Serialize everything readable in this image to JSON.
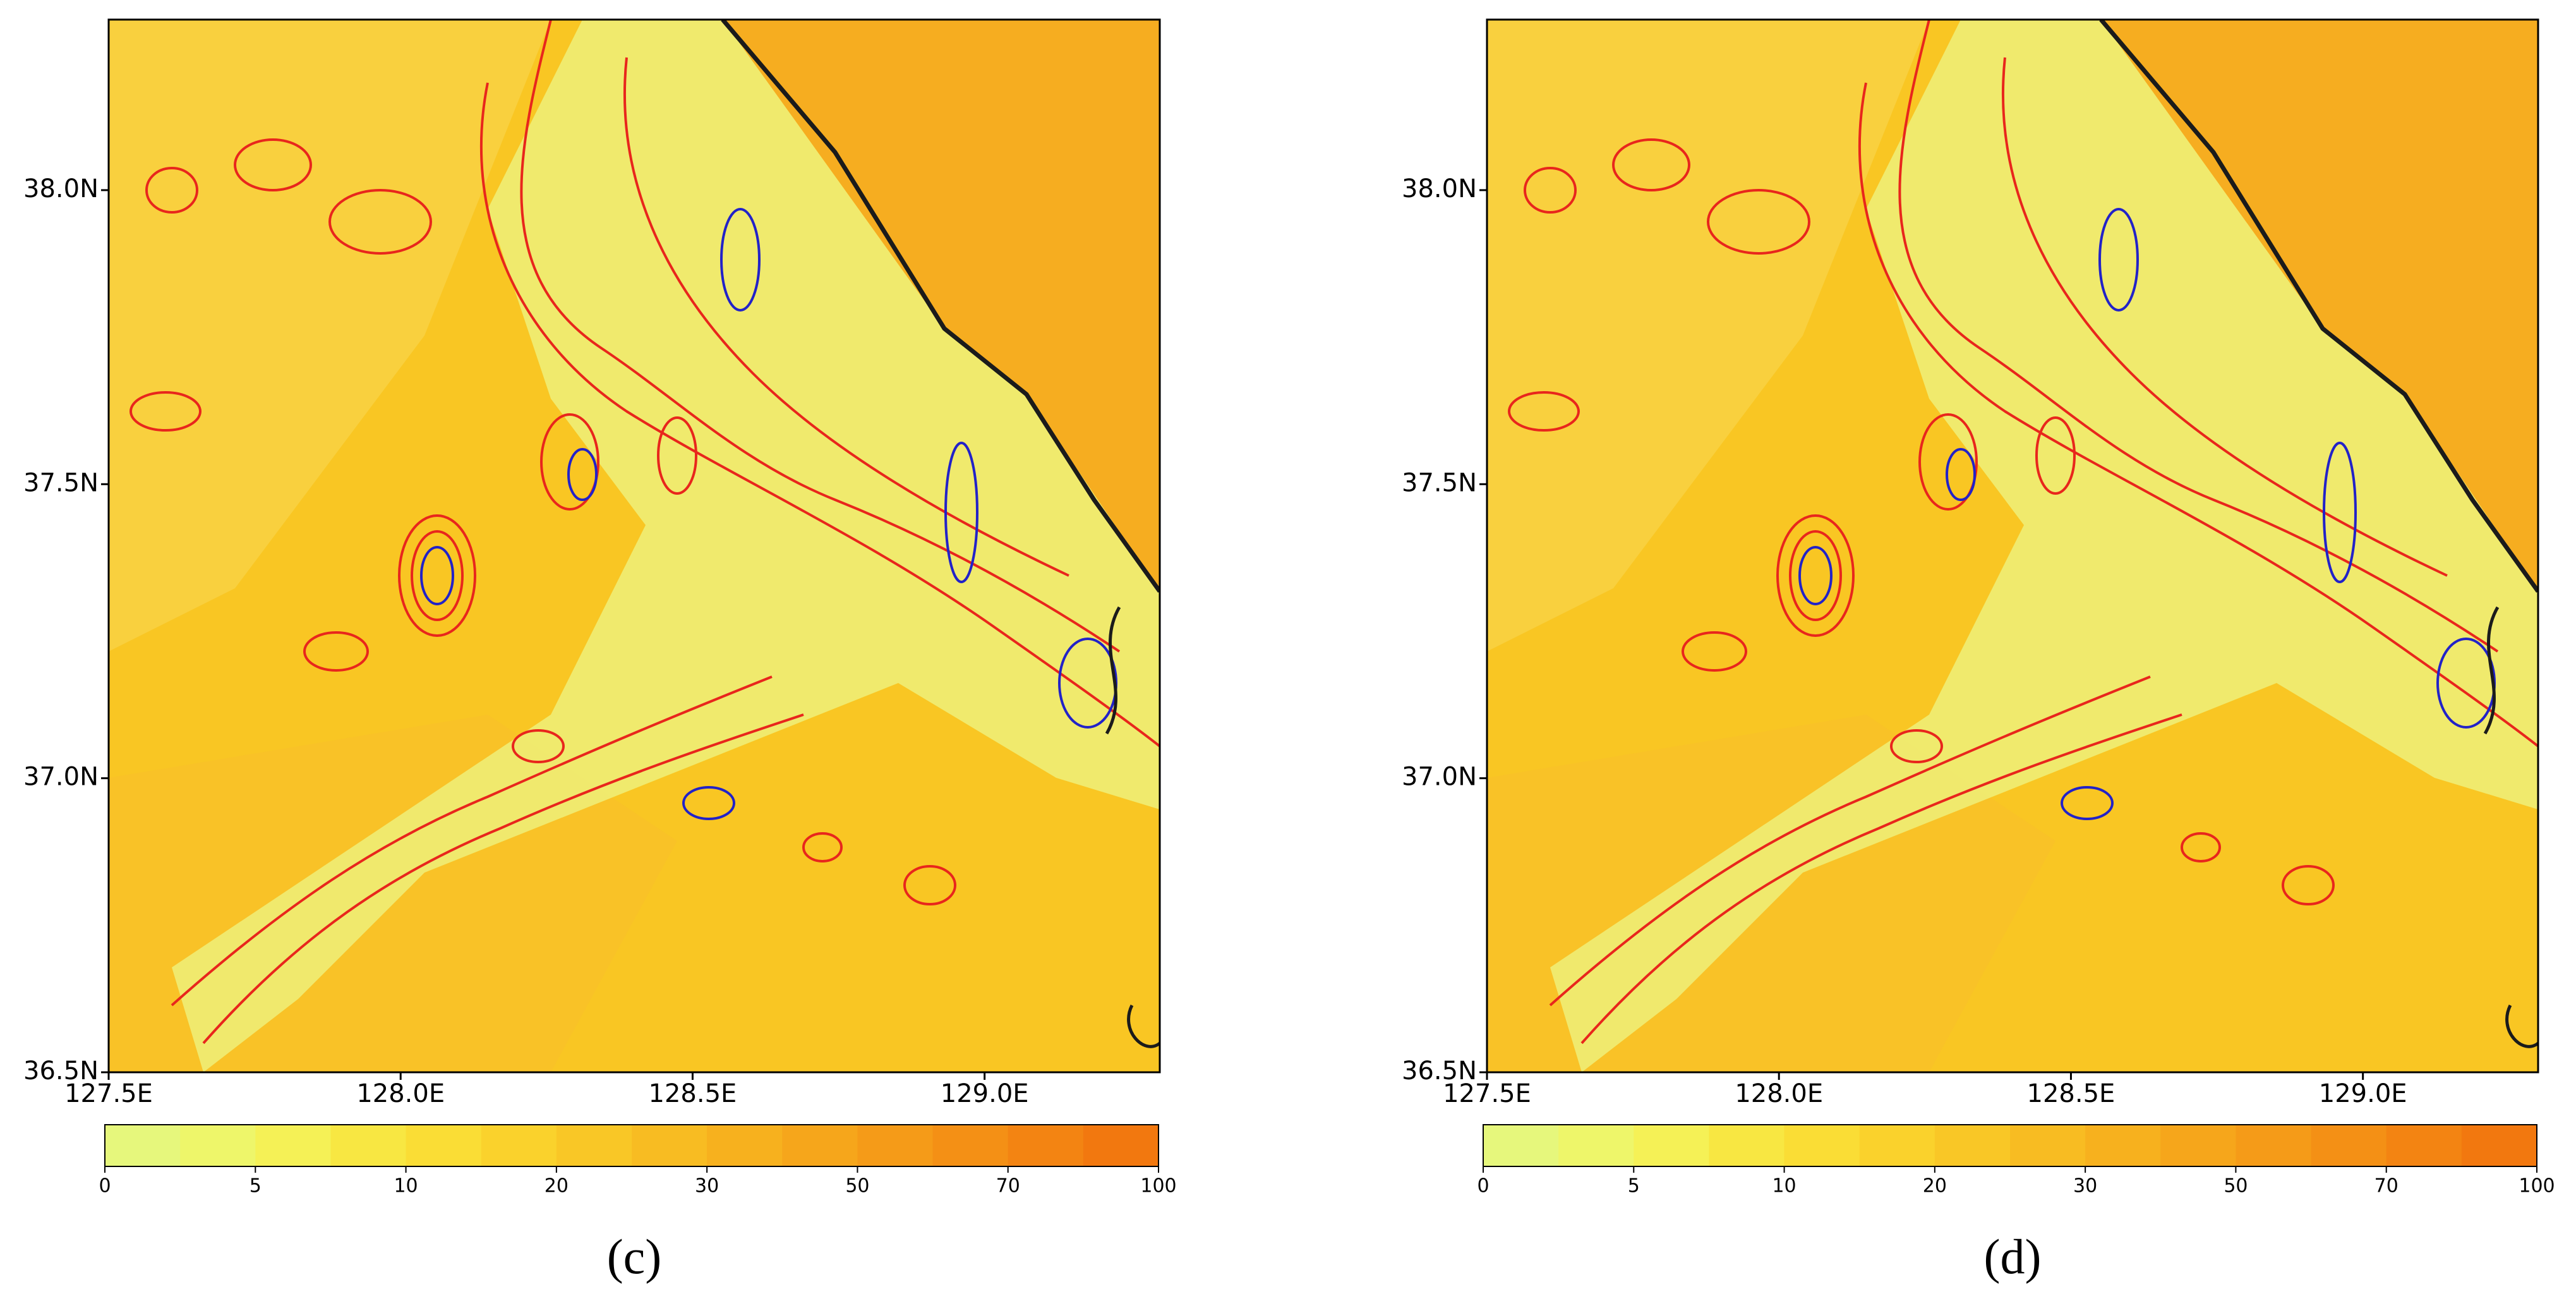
{
  "panels": [
    {
      "caption": "(c)",
      "lat_lim": [
        36.5,
        38.29
      ],
      "lon_lim": [
        127.5,
        129.3
      ],
      "lat_ticks": [
        {
          "value": 38.0,
          "label": "38.0N"
        },
        {
          "value": 37.5,
          "label": "37.5N"
        },
        {
          "value": 37.0,
          "label": "37.0N"
        },
        {
          "value": 36.5,
          "label": "36.5N"
        }
      ],
      "lon_ticks": [
        {
          "value": 127.5,
          "label": "127.5E"
        },
        {
          "value": 128.0,
          "label": "128.0E"
        },
        {
          "value": 128.5,
          "label": "128.5E"
        },
        {
          "value": 129.0,
          "label": "129.0E"
        }
      ],
      "colorbar": {
        "ticks": [
          0,
          5,
          10,
          20,
          30,
          50,
          70,
          100
        ],
        "colors": [
          "#e6f77c",
          "#eef66a",
          "#f5f156",
          "#f8e742",
          "#fadd35",
          "#fad22c",
          "#f9c726",
          "#f8bc22",
          "#f7b11e",
          "#f6a61b",
          "#f59b18",
          "#f49015",
          "#f38412",
          "#f2780f"
        ]
      }
    },
    {
      "caption": "(d)",
      "lat_lim": [
        36.5,
        38.29
      ],
      "lon_lim": [
        127.5,
        129.3
      ],
      "lat_ticks": [
        {
          "value": 38.0,
          "label": "38.0N"
        },
        {
          "value": 37.5,
          "label": "37.5N"
        },
        {
          "value": 37.0,
          "label": "37.0N"
        },
        {
          "value": 36.5,
          "label": "36.5N"
        }
      ],
      "lon_ticks": [
        {
          "value": 127.5,
          "label": "127.5E"
        },
        {
          "value": 128.0,
          "label": "128.0E"
        },
        {
          "value": 128.5,
          "label": "128.5E"
        },
        {
          "value": 129.0,
          "label": "129.0E"
        }
      ],
      "colorbar": {
        "ticks": [
          0,
          5,
          10,
          20,
          30,
          50,
          70,
          100
        ],
        "colors": [
          "#e6f77c",
          "#eef66a",
          "#f5f156",
          "#f8e742",
          "#fadd35",
          "#fad22c",
          "#f9c726",
          "#f8bc22",
          "#f7b11e",
          "#f6a61b",
          "#f59b18",
          "#f49015",
          "#f38412",
          "#f2780f"
        ]
      }
    }
  ]
}
